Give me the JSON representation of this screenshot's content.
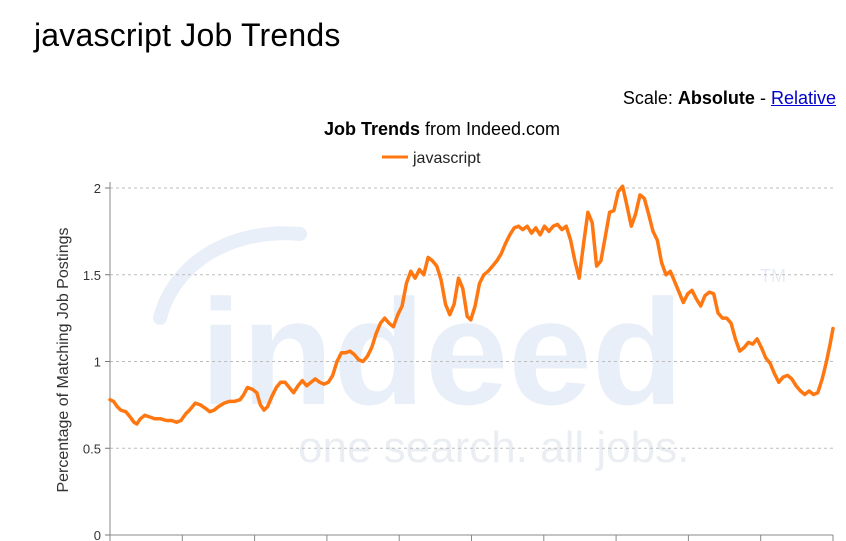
{
  "page": {
    "title": "javascript Job Trends"
  },
  "scale": {
    "label": "Scale:",
    "absolute": "Absolute",
    "separator": "-",
    "relative": "Relative"
  },
  "watermark": {
    "logo": "indeed",
    "tagline": "one search. all jobs.",
    "tm": "TM"
  },
  "chart_data": {
    "type": "line",
    "title_bold": "Job Trends",
    "title_rest": "from Indeed.com",
    "ylabel": "Percentage of Matching Job Postings",
    "xlabel": "",
    "ylim": [
      0,
      2
    ],
    "yticks": [
      0,
      0.5,
      1,
      1.5,
      2
    ],
    "ytick_labels": [
      "0",
      "0.5",
      "1",
      "1.5",
      "2"
    ],
    "grid": true,
    "legend_placement": "top-center",
    "series": [
      {
        "name": "javascript",
        "color": "#ff7711",
        "points": [
          [
            0.0,
            0.78
          ],
          [
            0.5,
            0.77
          ],
          [
            1.0,
            0.74
          ],
          [
            1.5,
            0.72
          ],
          [
            2.2,
            0.71
          ],
          [
            2.8,
            0.68
          ],
          [
            3.3,
            0.65
          ],
          [
            3.7,
            0.64
          ],
          [
            4.2,
            0.67
          ],
          [
            4.8,
            0.69
          ],
          [
            5.5,
            0.68
          ],
          [
            6.2,
            0.67
          ],
          [
            7.0,
            0.67
          ],
          [
            7.8,
            0.66
          ],
          [
            8.5,
            0.66
          ],
          [
            9.2,
            0.65
          ],
          [
            9.8,
            0.66
          ],
          [
            10.5,
            0.7
          ],
          [
            11.0,
            0.72
          ],
          [
            11.8,
            0.76
          ],
          [
            12.5,
            0.75
          ],
          [
            13.2,
            0.73
          ],
          [
            13.8,
            0.71
          ],
          [
            14.4,
            0.72
          ],
          [
            15.0,
            0.74
          ],
          [
            15.8,
            0.76
          ],
          [
            16.5,
            0.77
          ],
          [
            17.2,
            0.77
          ],
          [
            18.0,
            0.78
          ],
          [
            18.5,
            0.81
          ],
          [
            19.0,
            0.85
          ],
          [
            19.7,
            0.84
          ],
          [
            20.3,
            0.82
          ],
          [
            20.8,
            0.75
          ],
          [
            21.3,
            0.72
          ],
          [
            21.8,
            0.74
          ],
          [
            22.4,
            0.8
          ],
          [
            23.0,
            0.85
          ],
          [
            23.6,
            0.88
          ],
          [
            24.2,
            0.88
          ],
          [
            24.8,
            0.85
          ],
          [
            25.4,
            0.82
          ],
          [
            26.0,
            0.86
          ],
          [
            26.6,
            0.89
          ],
          [
            27.2,
            0.86
          ],
          [
            27.8,
            0.88
          ],
          [
            28.4,
            0.9
          ],
          [
            29.0,
            0.88
          ],
          [
            29.6,
            0.87
          ],
          [
            30.2,
            0.88
          ],
          [
            30.8,
            0.92
          ],
          [
            31.4,
            1.0
          ],
          [
            32.0,
            1.05
          ],
          [
            32.6,
            1.05
          ],
          [
            33.2,
            1.06
          ],
          [
            33.8,
            1.04
          ],
          [
            34.4,
            1.01
          ],
          [
            35.0,
            1.0
          ],
          [
            35.6,
            1.03
          ],
          [
            36.2,
            1.08
          ],
          [
            36.8,
            1.16
          ],
          [
            37.4,
            1.22
          ],
          [
            38.0,
            1.25
          ],
          [
            38.6,
            1.22
          ],
          [
            39.2,
            1.2
          ],
          [
            39.8,
            1.27
          ],
          [
            40.4,
            1.32
          ],
          [
            41.0,
            1.45
          ],
          [
            41.6,
            1.52
          ],
          [
            42.2,
            1.48
          ],
          [
            42.8,
            1.53
          ],
          [
            43.4,
            1.5
          ],
          [
            44.0,
            1.6
          ],
          [
            44.6,
            1.58
          ],
          [
            45.2,
            1.55
          ],
          [
            45.8,
            1.47
          ],
          [
            46.4,
            1.33
          ],
          [
            47.0,
            1.27
          ],
          [
            47.6,
            1.33
          ],
          [
            48.2,
            1.48
          ],
          [
            48.8,
            1.42
          ],
          [
            49.4,
            1.26
          ],
          [
            49.9,
            1.24
          ],
          [
            50.5,
            1.32
          ],
          [
            51.1,
            1.45
          ],
          [
            51.7,
            1.5
          ],
          [
            52.3,
            1.52
          ],
          [
            52.9,
            1.55
          ],
          [
            53.5,
            1.58
          ],
          [
            54.1,
            1.62
          ],
          [
            54.7,
            1.68
          ],
          [
            55.3,
            1.73
          ],
          [
            55.9,
            1.77
          ],
          [
            56.5,
            1.78
          ],
          [
            57.1,
            1.76
          ],
          [
            57.7,
            1.78
          ],
          [
            58.3,
            1.74
          ],
          [
            58.9,
            1.77
          ],
          [
            59.5,
            1.73
          ],
          [
            60.1,
            1.78
          ],
          [
            60.7,
            1.75
          ],
          [
            61.3,
            1.78
          ],
          [
            61.9,
            1.79
          ],
          [
            62.5,
            1.76
          ],
          [
            63.1,
            1.78
          ],
          [
            63.7,
            1.7
          ],
          [
            64.3,
            1.58
          ],
          [
            64.9,
            1.48
          ],
          [
            65.5,
            1.68
          ],
          [
            66.1,
            1.86
          ],
          [
            66.7,
            1.8
          ],
          [
            67.3,
            1.55
          ],
          [
            67.9,
            1.58
          ],
          [
            68.5,
            1.72
          ],
          [
            69.1,
            1.86
          ],
          [
            69.7,
            1.87
          ],
          [
            70.3,
            1.98
          ],
          [
            70.9,
            2.01
          ],
          [
            71.5,
            1.9
          ],
          [
            72.1,
            1.78
          ],
          [
            72.7,
            1.85
          ],
          [
            73.3,
            1.96
          ],
          [
            73.9,
            1.94
          ],
          [
            74.5,
            1.85
          ],
          [
            75.1,
            1.75
          ],
          [
            75.7,
            1.7
          ],
          [
            76.3,
            1.57
          ],
          [
            76.9,
            1.5
          ],
          [
            77.5,
            1.52
          ],
          [
            78.1,
            1.46
          ],
          [
            78.7,
            1.4
          ],
          [
            79.3,
            1.34
          ],
          [
            79.9,
            1.39
          ],
          [
            80.5,
            1.41
          ],
          [
            81.1,
            1.36
          ],
          [
            81.7,
            1.32
          ],
          [
            82.3,
            1.38
          ],
          [
            82.9,
            1.4
          ],
          [
            83.5,
            1.39
          ],
          [
            84.1,
            1.28
          ],
          [
            84.7,
            1.25
          ],
          [
            85.3,
            1.25
          ],
          [
            85.9,
            1.22
          ],
          [
            86.5,
            1.13
          ],
          [
            87.1,
            1.06
          ],
          [
            87.7,
            1.08
          ],
          [
            88.3,
            1.11
          ],
          [
            88.9,
            1.1
          ],
          [
            89.5,
            1.13
          ],
          [
            90.1,
            1.08
          ],
          [
            90.7,
            1.02
          ],
          [
            91.3,
            0.99
          ],
          [
            91.9,
            0.93
          ],
          [
            92.5,
            0.88
          ],
          [
            93.1,
            0.91
          ],
          [
            93.7,
            0.92
          ],
          [
            94.3,
            0.9
          ],
          [
            94.9,
            0.86
          ],
          [
            95.5,
            0.83
          ],
          [
            96.1,
            0.81
          ],
          [
            96.7,
            0.83
          ],
          [
            97.3,
            0.81
          ],
          [
            97.9,
            0.82
          ],
          [
            98.5,
            0.9
          ],
          [
            99.1,
            1.0
          ],
          [
            99.6,
            1.1
          ],
          [
            100.0,
            1.19
          ]
        ]
      }
    ]
  }
}
